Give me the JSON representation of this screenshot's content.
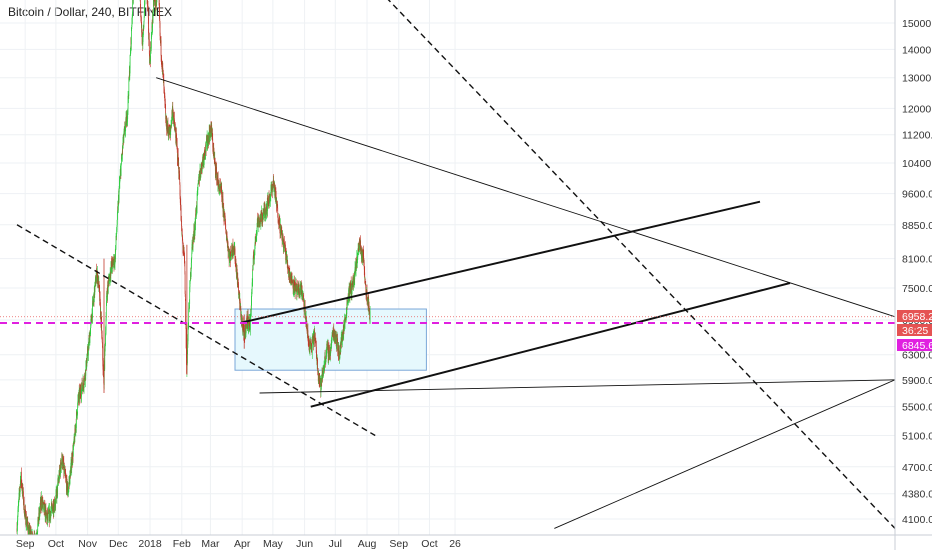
{
  "chart_title": "Bitcoin / Dollar, 240, BITFINEX",
  "colors": {
    "up": "#2ecc40",
    "down": "#c0392b",
    "grid": "#eef1f4",
    "price_line": "#e85d5d",
    "magenta": "#e020e0",
    "zone_fill": "#e6f8fd",
    "zone_stroke": "#7aa7d8"
  },
  "chart_data": {
    "type": "candlestick",
    "title": "Bitcoin / Dollar, 240, BITFINEX",
    "y_axis": {
      "scale": "log",
      "ticks": [
        "15000.0",
        "14000.0",
        "13000.0",
        "12000.0",
        "11200.0",
        "10400.0",
        "9600.0",
        "8850.0",
        "8100.0",
        "7500.0",
        "6900.0",
        "6300.0",
        "5900.0",
        "5500.0",
        "5100.0",
        "4700.0",
        "4380.0",
        "4100.0"
      ]
    },
    "x_axis": {
      "ticks": [
        "Sep",
        "Oct",
        "Nov",
        "Dec",
        "2018",
        "Feb",
        "Mar",
        "Apr",
        "May",
        "Jun",
        "Jul",
        "Aug",
        "Sep",
        "Oct",
        "26"
      ]
    },
    "series": [
      {
        "values": [
          [
            "Sep",
            4000
          ],
          [
            "Sep",
            4600
          ],
          [
            "Sep",
            3950
          ],
          [
            "Oct",
            4300
          ],
          [
            "Oct",
            5000
          ],
          [
            "Oct",
            5800
          ],
          [
            "Nov",
            7200
          ],
          [
            "Nov",
            7800
          ],
          [
            "Nov",
            5700
          ],
          [
            "Nov",
            8100
          ],
          [
            "Nov",
            9700
          ],
          [
            "Dec",
            11800
          ],
          [
            "Dec",
            16500
          ],
          [
            "Dec",
            14000
          ],
          [
            "2018",
            16800
          ],
          [
            "2018",
            13500
          ],
          [
            "2018",
            12000
          ],
          [
            "2018",
            11200
          ],
          [
            "Feb",
            8700
          ],
          [
            "Feb",
            6000
          ],
          [
            "Feb",
            8300
          ],
          [
            "Feb",
            10000
          ],
          [
            "Mar",
            11400
          ],
          [
            "Mar",
            9600
          ],
          [
            "Mar",
            8100
          ],
          [
            "Apr",
            6600
          ],
          [
            "Apr",
            6900
          ],
          [
            "Apr",
            8900
          ],
          [
            "May",
            9900
          ],
          [
            "May",
            8700
          ],
          [
            "May",
            7800
          ],
          [
            "Jun",
            7500
          ],
          [
            "Jun",
            6500
          ],
          [
            "Jun",
            6400
          ],
          [
            "Jun",
            5800
          ],
          [
            "Jul",
            6300
          ],
          [
            "Jul",
            6600
          ],
          [
            "Jul",
            7600
          ],
          [
            "Jul",
            8500
          ],
          [
            "Aug",
            7300
          ],
          [
            "Aug",
            6958.2
          ]
        ]
      }
    ],
    "last_price": "6958.2",
    "countdown": "36:25",
    "marker_price": "6845.6"
  }
}
